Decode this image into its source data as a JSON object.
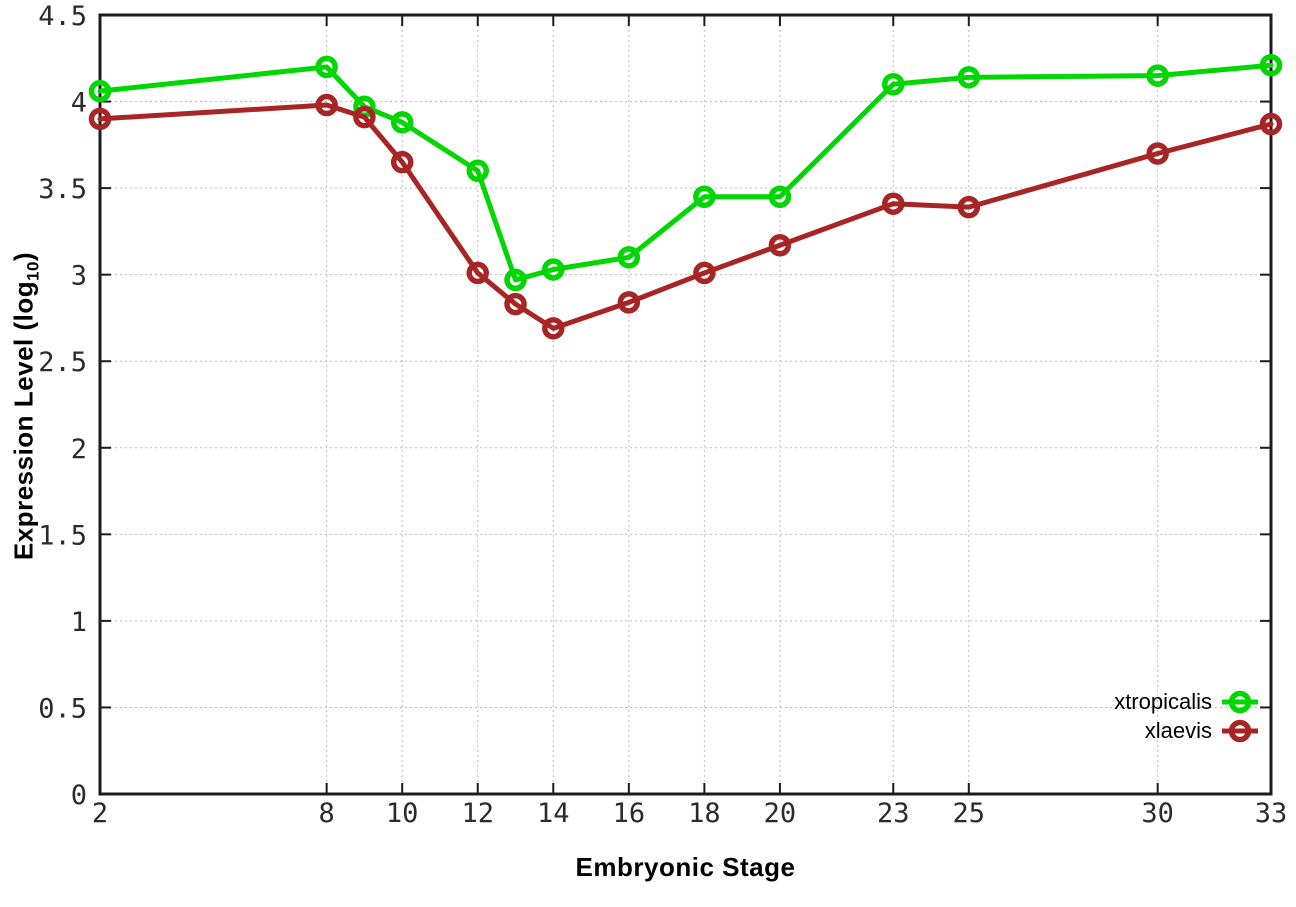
{
  "chart_data": {
    "type": "line",
    "title": "",
    "xlabel": "Embryonic Stage",
    "ylabel": "Expression Level (log10)",
    "ylabel_prefix": "Expression Level (log",
    "ylabel_sub": "10",
    "ylabel_suffix": ")",
    "x": [
      2,
      8,
      9,
      10,
      12,
      13,
      14,
      16,
      18,
      20,
      23,
      25,
      30,
      33
    ],
    "series": [
      {
        "name": "xtropicalis",
        "color": "#00d600",
        "values": [
          4.06,
          4.2,
          3.97,
          3.88,
          3.6,
          2.97,
          3.03,
          3.1,
          3.45,
          3.45,
          4.1,
          4.14,
          4.15,
          4.21
        ]
      },
      {
        "name": "xlaevis",
        "color": "#a82525",
        "values": [
          3.9,
          3.98,
          3.91,
          3.65,
          3.01,
          2.83,
          2.69,
          2.84,
          3.01,
          3.17,
          3.41,
          3.39,
          3.7,
          3.87
        ]
      }
    ],
    "xlim": [
      2,
      33
    ],
    "ylim": [
      0,
      4.5
    ],
    "x_tick_values": [
      2,
      8,
      10,
      12,
      14,
      16,
      18,
      20,
      23,
      25,
      30,
      33
    ],
    "x_tick_labels": [
      "2",
      "8",
      "10",
      "12",
      "14",
      "16",
      "18",
      "20",
      "23",
      "25",
      "30",
      "33"
    ],
    "y_tick_values": [
      0,
      0.5,
      1,
      1.5,
      2,
      2.5,
      3,
      3.5,
      4,
      4.5
    ],
    "y_tick_labels": [
      "0",
      "0.5",
      "1",
      "1.5",
      "2",
      "2.5",
      "3",
      "3.5",
      "4",
      "4.5"
    ],
    "grid": true,
    "legend_position": "bottom-right",
    "marker": "open-circle"
  },
  "colors": {
    "background": "#ffffff",
    "plot_border": "#1c1c1c",
    "gridline": "#bcbcbc",
    "tick_text": "#2b2b2b",
    "xtropicalis": "#00d600",
    "xlaevis": "#a82525"
  }
}
